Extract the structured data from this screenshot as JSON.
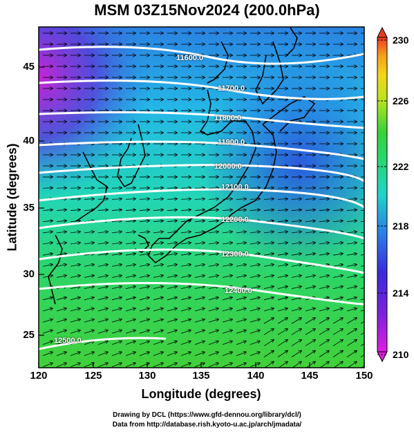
{
  "title": "MSM 03Z15Nov2024 (200.0hPa)",
  "axes": {
    "xlabel": "Longitude (degrees)",
    "ylabel": "Latitude  (degrees)",
    "xticks": [
      "120",
      "125",
      "130",
      "135",
      "140",
      "145",
      "150"
    ],
    "yticks": [
      "45",
      "40",
      "35",
      "30",
      "25"
    ]
  },
  "colorbar": {
    "ticks": [
      "230",
      "226",
      "222",
      "218",
      "214",
      "210"
    ],
    "min": 210,
    "max": 230,
    "colors": [
      "#e01ee0",
      "#3b2bd6",
      "#2aa8e8",
      "#22d39e",
      "#37d23a",
      "#d8e81c",
      "#f3a21d",
      "#ef3b20"
    ]
  },
  "contours": {
    "labels": [
      "11600.0",
      "11700.0",
      "11800.0",
      "11900.0",
      "12000.0",
      "12100.0",
      "12200.0",
      "12300.0",
      "12400.0",
      "12500.0"
    ]
  },
  "footer": {
    "line1": "Drawing by DCL (https://www.gfd-dennou.org/library/dcl/)",
    "line2": "Data from http://database.rish.kyoto-u.ac.jp/arch/jmadata/"
  }
}
